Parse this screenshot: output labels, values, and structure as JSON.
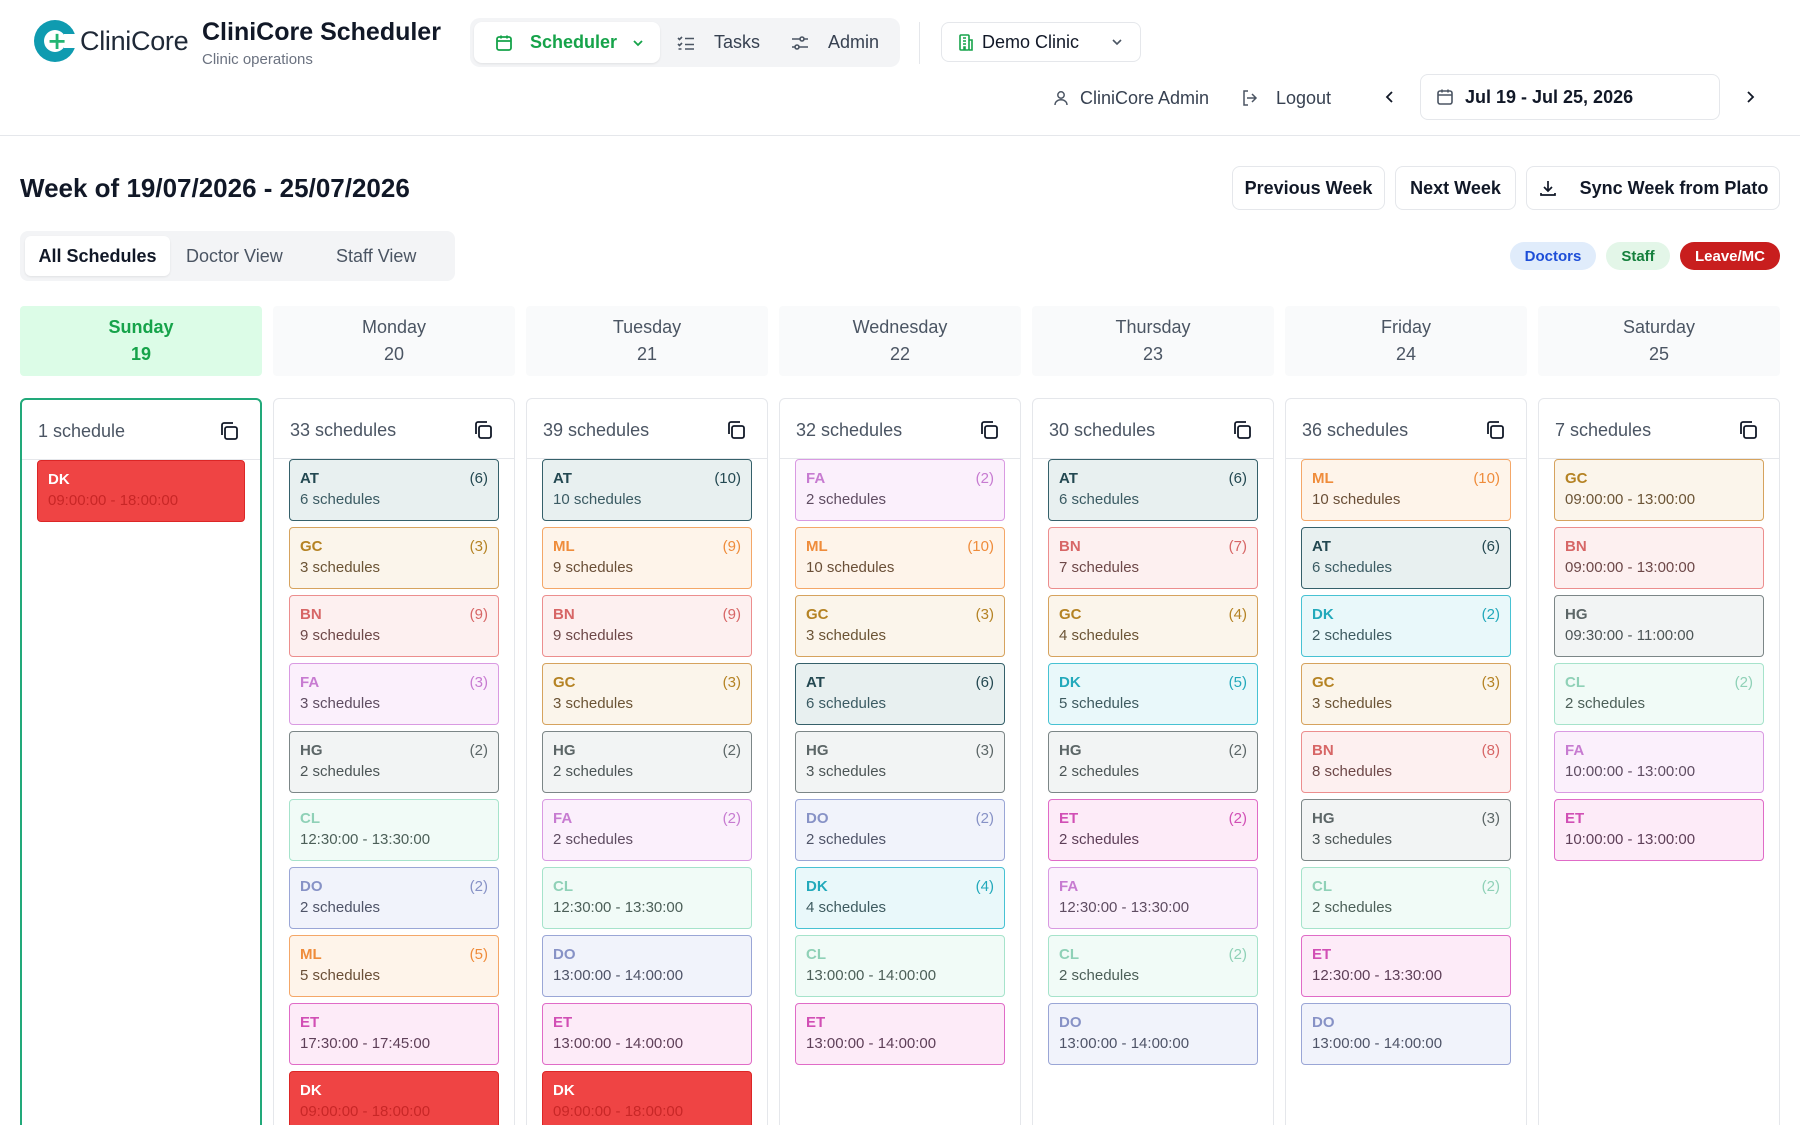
{
  "header": {
    "logo_text": "CliniCore",
    "app_title": "CliniCore Scheduler",
    "app_subtitle": "Clinic operations",
    "nav": [
      {
        "label": "Scheduler",
        "icon": "calendar-icon",
        "active": true
      },
      {
        "label": "Tasks",
        "icon": "checklist-icon"
      },
      {
        "label": "Admin",
        "icon": "sliders-icon"
      }
    ],
    "clinic": "Demo Clinic",
    "user": "CliniCore Admin",
    "logout": "Logout",
    "date_range": "Jul 19 - Jul 25, 2026"
  },
  "page": {
    "title": "Week of 19/07/2026 - 25/07/2026",
    "prev_week": "Previous Week",
    "next_week": "Next Week",
    "sync": "Sync Week from Plato",
    "view_tabs": [
      "All Schedules",
      "Doctor View",
      "Staff View"
    ],
    "legend": [
      {
        "label": "Doctors",
        "bg": "#e0ecfb",
        "fg": "#1d4ed8"
      },
      {
        "label": "Staff",
        "bg": "#e3f6e8",
        "fg": "#15803d"
      },
      {
        "label": "Leave/MC",
        "bg": "#c81e1e",
        "fg": "#ffffff"
      }
    ]
  },
  "days": [
    {
      "name": "Sunday",
      "date": "19",
      "today": true,
      "count": "1 schedule",
      "cards": [
        {
          "code": "DK",
          "num": "",
          "sub": "09:00:00 - 18:00:00",
          "variant": "leave"
        }
      ]
    },
    {
      "name": "Monday",
      "date": "20",
      "count": "33 schedules",
      "cards": [
        {
          "code": "AT",
          "num": "(6)",
          "sub": "6 schedules",
          "variant": "at"
        },
        {
          "code": "GC",
          "num": "(3)",
          "sub": "3 schedules",
          "variant": "gc"
        },
        {
          "code": "BN",
          "num": "(9)",
          "sub": "9 schedules",
          "variant": "bn"
        },
        {
          "code": "FA",
          "num": "(3)",
          "sub": "3 schedules",
          "variant": "fa"
        },
        {
          "code": "HG",
          "num": "(2)",
          "sub": "2 schedules",
          "variant": "hg"
        },
        {
          "code": "CL",
          "num": "",
          "sub": "12:30:00 - 13:30:00",
          "variant": "cl"
        },
        {
          "code": "DO",
          "num": "(2)",
          "sub": "2 schedules",
          "variant": "do"
        },
        {
          "code": "ML",
          "num": "(5)",
          "sub": "5 schedules",
          "variant": "ml"
        },
        {
          "code": "ET",
          "num": "",
          "sub": "17:30:00 - 17:45:00",
          "variant": "et"
        },
        {
          "code": "DK",
          "num": "",
          "sub": "09:00:00 - 18:00:00",
          "variant": "leave"
        }
      ]
    },
    {
      "name": "Tuesday",
      "date": "21",
      "count": "39 schedules",
      "cards": [
        {
          "code": "AT",
          "num": "(10)",
          "sub": "10 schedules",
          "variant": "at"
        },
        {
          "code": "ML",
          "num": "(9)",
          "sub": "9 schedules",
          "variant": "ml"
        },
        {
          "code": "BN",
          "num": "(9)",
          "sub": "9 schedules",
          "variant": "bn"
        },
        {
          "code": "GC",
          "num": "(3)",
          "sub": "3 schedules",
          "variant": "gc"
        },
        {
          "code": "HG",
          "num": "(2)",
          "sub": "2 schedules",
          "variant": "hg"
        },
        {
          "code": "FA",
          "num": "(2)",
          "sub": "2 schedules",
          "variant": "fa"
        },
        {
          "code": "CL",
          "num": "",
          "sub": "12:30:00 - 13:30:00",
          "variant": "cl"
        },
        {
          "code": "DO",
          "num": "",
          "sub": "13:00:00 - 14:00:00",
          "variant": "do"
        },
        {
          "code": "ET",
          "num": "",
          "sub": "13:00:00 - 14:00:00",
          "variant": "et"
        },
        {
          "code": "DK",
          "num": "",
          "sub": "09:00:00 - 18:00:00",
          "variant": "leave"
        }
      ]
    },
    {
      "name": "Wednesday",
      "date": "22",
      "count": "32 schedules",
      "cards": [
        {
          "code": "FA",
          "num": "(2)",
          "sub": "2 schedules",
          "variant": "fa"
        },
        {
          "code": "ML",
          "num": "(10)",
          "sub": "10 schedules",
          "variant": "ml"
        },
        {
          "code": "GC",
          "num": "(3)",
          "sub": "3 schedules",
          "variant": "gc"
        },
        {
          "code": "AT",
          "num": "(6)",
          "sub": "6 schedules",
          "variant": "at"
        },
        {
          "code": "HG",
          "num": "(3)",
          "sub": "3 schedules",
          "variant": "hg"
        },
        {
          "code": "DO",
          "num": "(2)",
          "sub": "2 schedules",
          "variant": "do"
        },
        {
          "code": "DK",
          "num": "(4)",
          "sub": "4 schedules",
          "variant": "dk"
        },
        {
          "code": "CL",
          "num": "",
          "sub": "13:00:00 - 14:00:00",
          "variant": "cl"
        },
        {
          "code": "ET",
          "num": "",
          "sub": "13:00:00 - 14:00:00",
          "variant": "et"
        }
      ]
    },
    {
      "name": "Thursday",
      "date": "23",
      "count": "30 schedules",
      "cards": [
        {
          "code": "AT",
          "num": "(6)",
          "sub": "6 schedules",
          "variant": "at"
        },
        {
          "code": "BN",
          "num": "(7)",
          "sub": "7 schedules",
          "variant": "bn"
        },
        {
          "code": "GC",
          "num": "(4)",
          "sub": "4 schedules",
          "variant": "gc"
        },
        {
          "code": "DK",
          "num": "(5)",
          "sub": "5 schedules",
          "variant": "dk"
        },
        {
          "code": "HG",
          "num": "(2)",
          "sub": "2 schedules",
          "variant": "hg"
        },
        {
          "code": "ET",
          "num": "(2)",
          "sub": "2 schedules",
          "variant": "et"
        },
        {
          "code": "FA",
          "num": "",
          "sub": "12:30:00 - 13:30:00",
          "variant": "fa"
        },
        {
          "code": "CL",
          "num": "(2)",
          "sub": "2 schedules",
          "variant": "cl"
        },
        {
          "code": "DO",
          "num": "",
          "sub": "13:00:00 - 14:00:00",
          "variant": "do"
        }
      ]
    },
    {
      "name": "Friday",
      "date": "24",
      "count": "36 schedules",
      "cards": [
        {
          "code": "ML",
          "num": "(10)",
          "sub": "10 schedules",
          "variant": "ml"
        },
        {
          "code": "AT",
          "num": "(6)",
          "sub": "6 schedules",
          "variant": "at"
        },
        {
          "code": "DK",
          "num": "(2)",
          "sub": "2 schedules",
          "variant": "dk"
        },
        {
          "code": "GC",
          "num": "(3)",
          "sub": "3 schedules",
          "variant": "gc"
        },
        {
          "code": "BN",
          "num": "(8)",
          "sub": "8 schedules",
          "variant": "bn"
        },
        {
          "code": "HG",
          "num": "(3)",
          "sub": "3 schedules",
          "variant": "hg"
        },
        {
          "code": "CL",
          "num": "(2)",
          "sub": "2 schedules",
          "variant": "cl"
        },
        {
          "code": "ET",
          "num": "",
          "sub": "12:30:00 - 13:30:00",
          "variant": "et"
        },
        {
          "code": "DO",
          "num": "",
          "sub": "13:00:00 - 14:00:00",
          "variant": "do"
        }
      ]
    },
    {
      "name": "Saturday",
      "date": "25",
      "count": "7 schedules",
      "cards": [
        {
          "code": "GC",
          "num": "",
          "sub": "09:00:00 - 13:00:00",
          "variant": "gc"
        },
        {
          "code": "BN",
          "num": "",
          "sub": "09:00:00 - 13:00:00",
          "variant": "bn"
        },
        {
          "code": "HG",
          "num": "",
          "sub": "09:30:00 - 11:00:00",
          "variant": "hg"
        },
        {
          "code": "CL",
          "num": "(2)",
          "sub": "2 schedules",
          "variant": "cl"
        },
        {
          "code": "FA",
          "num": "",
          "sub": "10:00:00 - 13:00:00",
          "variant": "fa"
        },
        {
          "code": "ET",
          "num": "",
          "sub": "10:00:00 - 13:00:00",
          "variant": "et"
        }
      ]
    }
  ]
}
